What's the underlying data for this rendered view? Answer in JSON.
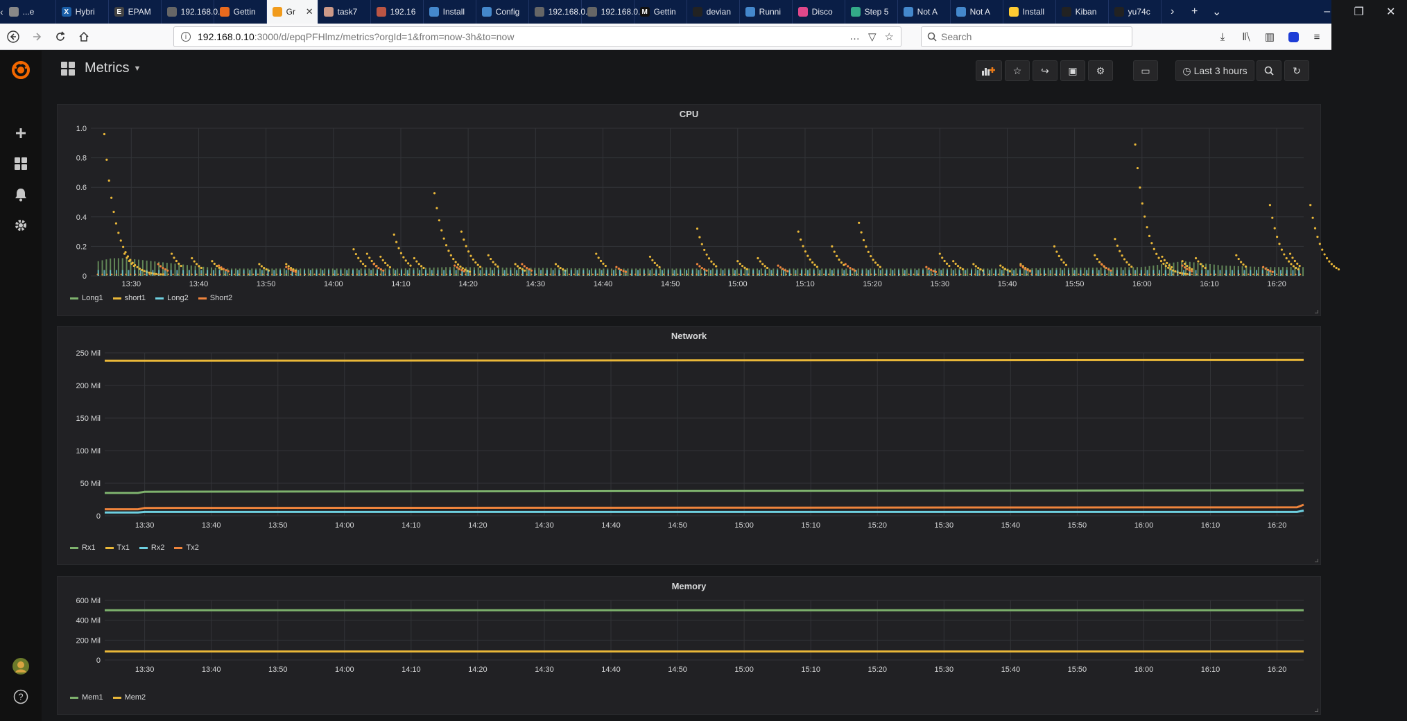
{
  "browser": {
    "tabs": [
      {
        "label": "...e",
        "color": "#888"
      },
      {
        "label": "Hybri",
        "color": "#1b5fa8",
        "glyph": "X"
      },
      {
        "label": "EPAM",
        "color": "#444",
        "glyph": "E"
      },
      {
        "label": "192.168.0.",
        "color": "#666"
      },
      {
        "label": "Gettin",
        "color": "#e86a1e"
      },
      {
        "label": "Gr",
        "color": "#f19b1c",
        "active": true
      },
      {
        "label": "task7",
        "color": "#c98"
      },
      {
        "label": "192.16",
        "color": "#b54"
      },
      {
        "label": "Install",
        "color": "#48c"
      },
      {
        "label": "Config",
        "color": "#48c"
      },
      {
        "label": "192.168.0.",
        "color": "#666"
      },
      {
        "label": "192.168.0.",
        "color": "#666"
      },
      {
        "label": "Gettin",
        "color": "#111",
        "glyph": "M"
      },
      {
        "label": "devian",
        "color": "#222"
      },
      {
        "label": "Runni",
        "color": "#48c"
      },
      {
        "label": "Disco",
        "color": "#e0488a"
      },
      {
        "label": "Step 5",
        "color": "#3a8"
      },
      {
        "label": "Not A",
        "color": "#48c"
      },
      {
        "label": "Not A",
        "color": "#48c"
      },
      {
        "label": "Install",
        "color": "#fc3"
      },
      {
        "label": "Kiban",
        "color": "#222"
      },
      {
        "label": "yu74c",
        "color": "#222"
      }
    ],
    "url_host": "192.168.0.10",
    "url_path": ":3000/d/epqPFHlmz/metrics?orgId=1&from=now-3h&to=now",
    "search_placeholder": "Search"
  },
  "dashboard": {
    "title": "Metrics",
    "time_picker_label": "Last 3 hours"
  },
  "chart_data": [
    {
      "type": "scatter",
      "title": "CPU",
      "x_ticks": [
        "13:30",
        "13:40",
        "13:50",
        "14:00",
        "14:10",
        "14:20",
        "14:30",
        "14:40",
        "14:50",
        "15:00",
        "15:10",
        "15:20",
        "15:30",
        "15:40",
        "15:50",
        "16:00",
        "16:10",
        "16:20"
      ],
      "y_ticks": [
        "0",
        "0.2",
        "0.4",
        "0.6",
        "0.8",
        "1.0"
      ],
      "ylim": [
        0,
        1.0
      ],
      "xlim_minutes": [
        -6,
        174
      ],
      "legend": "bottom-left",
      "series": [
        {
          "name": "Long1",
          "color": "#7eb26d",
          "style": "bars",
          "baseline": 0.04,
          "points": [
            [
              -5,
              0.1
            ],
            [
              -3,
              0.12
            ],
            [
              -1,
              0.12
            ],
            [
              1,
              0.11
            ],
            [
              3,
              0.1
            ],
            [
              5,
              0.09
            ],
            [
              7,
              0.08
            ],
            [
              9,
              0.07
            ],
            [
              11,
              0.06
            ],
            [
              14,
              0.05
            ],
            [
              17,
              0.05
            ],
            [
              40,
              0.05
            ],
            [
              47,
              0.06
            ],
            [
              70,
              0.05
            ],
            [
              130,
              0.05
            ],
            [
              150,
              0.06
            ],
            [
              156,
              0.1
            ],
            [
              158,
              0.09
            ],
            [
              162,
              0.07
            ],
            [
              168,
              0.06
            ],
            [
              174,
              0.06
            ]
          ]
        },
        {
          "name": "short1",
          "color": "#eab839",
          "style": "dots",
          "bursts": [
            [
              -4,
              0.96
            ],
            [
              -1,
              0.15
            ],
            [
              6,
              0.15
            ],
            [
              9,
              0.12
            ],
            [
              12,
              0.1
            ],
            [
              19,
              0.08
            ],
            [
              23,
              0.08
            ],
            [
              33,
              0.18
            ],
            [
              35,
              0.15
            ],
            [
              37,
              0.13
            ],
            [
              39,
              0.28
            ],
            [
              42,
              0.12
            ],
            [
              45,
              0.56
            ],
            [
              49,
              0.3
            ],
            [
              53,
              0.14
            ],
            [
              57,
              0.08
            ],
            [
              63,
              0.08
            ],
            [
              69,
              0.15
            ],
            [
              77,
              0.13
            ],
            [
              84,
              0.32
            ],
            [
              90,
              0.1
            ],
            [
              93,
              0.12
            ],
            [
              99,
              0.3
            ],
            [
              104,
              0.2
            ],
            [
              108,
              0.36
            ],
            [
              120,
              0.15
            ],
            [
              122,
              0.1
            ],
            [
              125,
              0.08
            ],
            [
              129,
              0.07
            ],
            [
              132,
              0.08
            ],
            [
              137,
              0.2
            ],
            [
              143,
              0.14
            ],
            [
              146,
              0.25
            ],
            [
              149,
              0.89
            ],
            [
              153,
              0.13
            ],
            [
              156,
              0.1
            ],
            [
              158,
              0.12
            ],
            [
              164,
              0.14
            ],
            [
              169,
              0.48
            ],
            [
              172,
              0.15
            ],
            [
              175,
              0.48
            ]
          ]
        },
        {
          "name": "Long2",
          "color": "#6ed0e0",
          "style": "bars",
          "baseline": 0.04,
          "points": [
            [
              -6,
              0.04
            ],
            [
              174,
              0.04
            ]
          ]
        },
        {
          "name": "Short2",
          "color": "#ef843c",
          "style": "dots",
          "bursts": [
            [
              4,
              0.08
            ],
            [
              13,
              0.07
            ],
            [
              23,
              0.06
            ],
            [
              36,
              0.08
            ],
            [
              48,
              0.07
            ],
            [
              58,
              0.08
            ],
            [
              72,
              0.06
            ],
            [
              84,
              0.08
            ],
            [
              96,
              0.07
            ],
            [
              106,
              0.08
            ],
            [
              118,
              0.06
            ],
            [
              132,
              0.07
            ],
            [
              144,
              0.08
            ],
            [
              156,
              0.07
            ],
            [
              168,
              0.06
            ]
          ]
        }
      ]
    },
    {
      "type": "line",
      "title": "Network",
      "x_ticks": [
        "13:30",
        "13:40",
        "13:50",
        "14:00",
        "14:10",
        "14:20",
        "14:30",
        "14:40",
        "14:50",
        "15:00",
        "15:10",
        "15:20",
        "15:30",
        "15:40",
        "15:50",
        "16:00",
        "16:10",
        "16:20"
      ],
      "y_ticks": [
        "0",
        "50 Mil",
        "100 Mil",
        "150 Mil",
        "200 Mil",
        "250 Mil"
      ],
      "ylim": [
        0,
        250
      ],
      "xlim_minutes": [
        -6,
        174
      ],
      "legend": "bottom-left",
      "series": [
        {
          "name": "Rx1",
          "color": "#7eb26d",
          "points": [
            [
              -6,
              35
            ],
            [
              -1,
              35
            ],
            [
              0,
              37
            ],
            [
              174,
              39
            ]
          ]
        },
        {
          "name": "Tx1",
          "color": "#eab839",
          "points": [
            [
              -6,
              238
            ],
            [
              174,
              239
            ]
          ]
        },
        {
          "name": "Rx2",
          "color": "#6ed0e0",
          "points": [
            [
              -6,
              5
            ],
            [
              -1,
              5
            ],
            [
              0,
              6
            ],
            [
              173,
              6
            ],
            [
              174,
              8
            ]
          ]
        },
        {
          "name": "Tx2",
          "color": "#ef843c",
          "points": [
            [
              -6,
              10
            ],
            [
              -1,
              10
            ],
            [
              0,
              12
            ],
            [
              173,
              13
            ],
            [
              174,
              17
            ]
          ]
        }
      ]
    },
    {
      "type": "line",
      "title": "Memory",
      "x_ticks": [
        "13:30",
        "13:40",
        "13:50",
        "14:00",
        "14:10",
        "14:20",
        "14:30",
        "14:40",
        "14:50",
        "15:00",
        "15:10",
        "15:20",
        "15:30",
        "15:40",
        "15:50",
        "16:00",
        "16:10",
        "16:20"
      ],
      "y_ticks": [
        "0",
        "200 Mil",
        "400 Mil",
        "600 Mil"
      ],
      "ylim": [
        0,
        600
      ],
      "xlim_minutes": [
        -6,
        174
      ],
      "legend": "bottom-left",
      "series": [
        {
          "name": "Mem1",
          "color": "#7eb26d",
          "points": [
            [
              -6,
              500
            ],
            [
              174,
              500
            ]
          ]
        },
        {
          "name": "Mem2",
          "color": "#eab839",
          "points": [
            [
              -6,
              85
            ],
            [
              174,
              85
            ]
          ]
        }
      ]
    }
  ]
}
